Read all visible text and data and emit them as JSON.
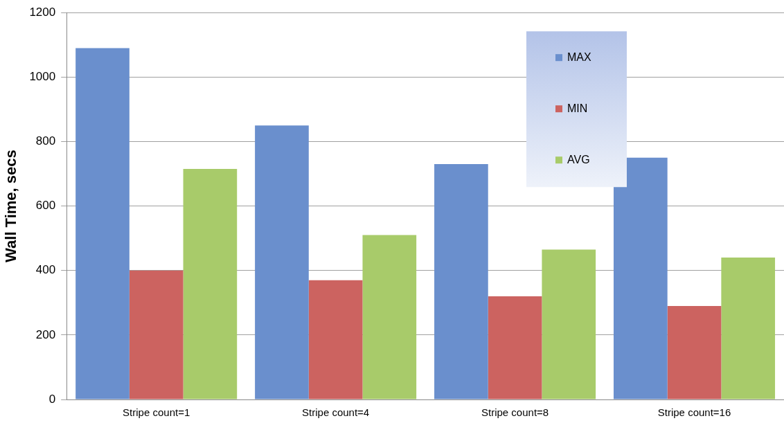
{
  "chart_data": {
    "type": "bar",
    "ylabel": "Wall Time, secs",
    "categories": [
      "Stripe count=1",
      "Stripe count=4",
      "Stripe count=8",
      "Stripe count=16"
    ],
    "series": [
      {
        "name": "MAX",
        "color": "#6a8fcd",
        "values": [
          1090,
          850,
          730,
          750
        ]
      },
      {
        "name": "MIN",
        "color": "#cc6360",
        "values": [
          400,
          370,
          320,
          290
        ]
      },
      {
        "name": "AVG",
        "color": "#a8cb6a",
        "values": [
          715,
          510,
          465,
          440
        ]
      }
    ],
    "ylim": [
      0,
      1200
    ],
    "yticks": [
      0,
      200,
      400,
      600,
      800,
      1000,
      1200
    ],
    "grid": "y",
    "legend": "top right"
  }
}
